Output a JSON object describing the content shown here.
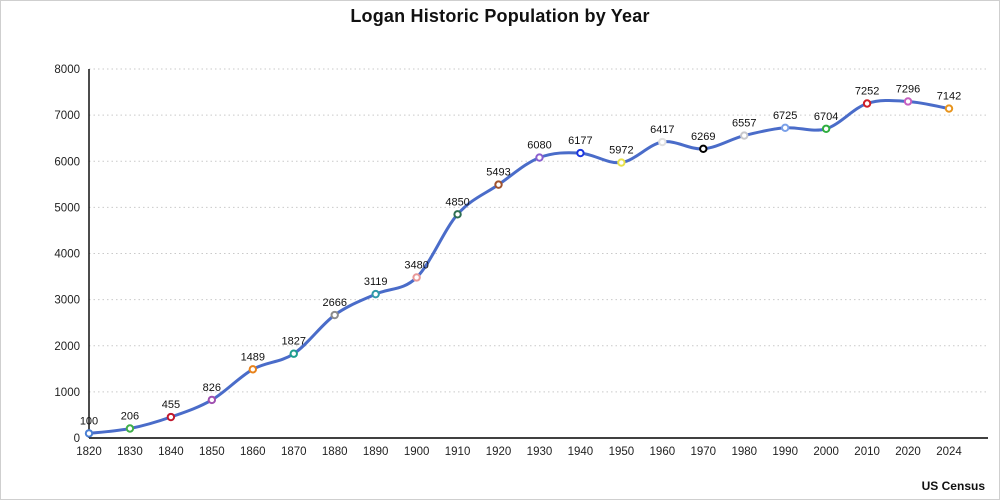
{
  "chart_data": {
    "type": "line",
    "title": "Logan Historic Population by Year",
    "source": "US Census",
    "categories": [
      "1820",
      "1830",
      "1840",
      "1850",
      "1860",
      "1870",
      "1880",
      "1890",
      "1900",
      "1910",
      "1920",
      "1930",
      "1940",
      "1950",
      "1960",
      "1970",
      "1980",
      "1990",
      "2000",
      "2010",
      "2020",
      "2024"
    ],
    "values": [
      100,
      206,
      455,
      826,
      1489,
      1827,
      2666,
      3119,
      3480,
      4850,
      5493,
      6080,
      6177,
      5972,
      6417,
      6269,
      6557,
      6725,
      6704,
      7252,
      7296,
      7142
    ],
    "point_colors": [
      "#4a7fd4",
      "#3fae49",
      "#c0182e",
      "#a050b0",
      "#e8821a",
      "#1f9e8e",
      "#8c8c8c",
      "#2f9aa8",
      "#e89898",
      "#2e6e52",
      "#a0522d",
      "#8a5fd0",
      "#1a35e0",
      "#e8e24a",
      "#e0e0e0",
      "#000000",
      "#c8c8cc",
      "#7aa0e8",
      "#2fae3f",
      "#d02028",
      "#c65fc0",
      "#e8941c"
    ],
    "line_color": "#4a6cc9",
    "grid_color": "#c9c9c9",
    "axis_color": "#000000",
    "ylim": [
      0,
      8000
    ],
    "ytick_step": 1000,
    "ytick_labels": [
      "0",
      "1000",
      "2000",
      "3000",
      "4000",
      "5000",
      "6000",
      "7000",
      "8000"
    ],
    "grid": true,
    "legend": false,
    "line_smoothed": true
  }
}
